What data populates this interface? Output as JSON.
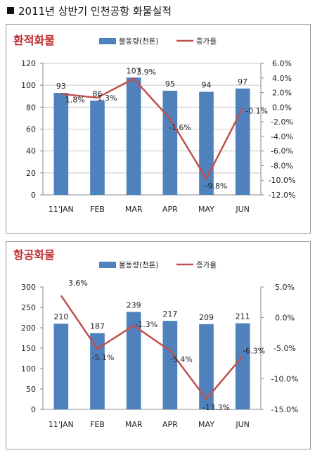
{
  "page": {
    "title": "2011년 상반기 인천공항 화물실적"
  },
  "colors": {
    "bar": "#4f81bd",
    "line": "#c0504d",
    "panel_title": "#c0282c",
    "grid": "#c8c8c8",
    "axis": "#888888",
    "text": "#222222"
  },
  "chart_data": [
    {
      "type": "bar",
      "title": "환적화물",
      "categories": [
        "11'JAN",
        "FEB",
        "MAR",
        "APR",
        "MAY",
        "JUN"
      ],
      "series": [
        {
          "name": "물동량(천톤)",
          "type": "bar",
          "axis": "left",
          "values": [
            93,
            86,
            107,
            95,
            94,
            97
          ],
          "labels": [
            "93",
            "86",
            "107",
            "95",
            "94",
            "97"
          ]
        },
        {
          "name": "증가율",
          "type": "line",
          "axis": "right",
          "values": [
            1.8,
            1.3,
            3.9,
            -1.6,
            -9.8,
            -0.1
          ],
          "labels": [
            "1.8%",
            "1.3%",
            "3.9%",
            "-1.6%",
            "-9.8%",
            "-0.1%"
          ]
        }
      ],
      "y_left": {
        "ylim": [
          0,
          120
        ],
        "ticks": [
          0,
          20,
          40,
          60,
          80,
          100,
          120
        ],
        "tick_labels": [
          "0",
          "20",
          "40",
          "60",
          "80",
          "100",
          "120"
        ]
      },
      "y_right": {
        "ylim": [
          -12,
          6
        ],
        "ticks": [
          6,
          4,
          2,
          0,
          -2,
          -4,
          -6,
          -8,
          -10,
          -12
        ],
        "tick_labels": [
          "6.0%",
          "4.0%",
          "2.0%",
          "0.0%",
          "-2.0%",
          "-4.0%",
          "-6.0%",
          "-8.0%",
          "-10.0%",
          "-12.0%"
        ]
      },
      "grid": true,
      "legend": "top-center"
    },
    {
      "type": "bar",
      "title": "항공화물",
      "categories": [
        "11'JAN",
        "FEB",
        "MAR",
        "APR",
        "MAY",
        "JUN"
      ],
      "series": [
        {
          "name": "물동량(천톤)",
          "type": "bar",
          "axis": "left",
          "values": [
            210,
            187,
            239,
            217,
            209,
            211
          ],
          "labels": [
            "210",
            "187",
            "239",
            "217",
            "209",
            "211"
          ]
        },
        {
          "name": "증가율",
          "type": "line",
          "axis": "right",
          "values": [
            3.6,
            -5.1,
            -1.3,
            -5.4,
            -13.3,
            -6.3
          ],
          "labels": [
            "3.6%",
            "-5.1%",
            "-1.3%",
            "-5.4%",
            "-13.3%",
            "-6.3%"
          ]
        }
      ],
      "y_left": {
        "ylim": [
          0,
          300
        ],
        "ticks": [
          0,
          50,
          100,
          150,
          200,
          250,
          300
        ],
        "tick_labels": [
          "0",
          "50",
          "100",
          "150",
          "200",
          "250",
          "300"
        ]
      },
      "y_right": {
        "ylim": [
          -15,
          5
        ],
        "ticks": [
          5,
          0,
          -5,
          -10,
          -15
        ],
        "tick_labels": [
          "5.0%",
          "0.0%",
          "-5.0%",
          "-10.0%",
          "-15.0%"
        ]
      },
      "grid": false,
      "legend": "top-center"
    }
  ]
}
